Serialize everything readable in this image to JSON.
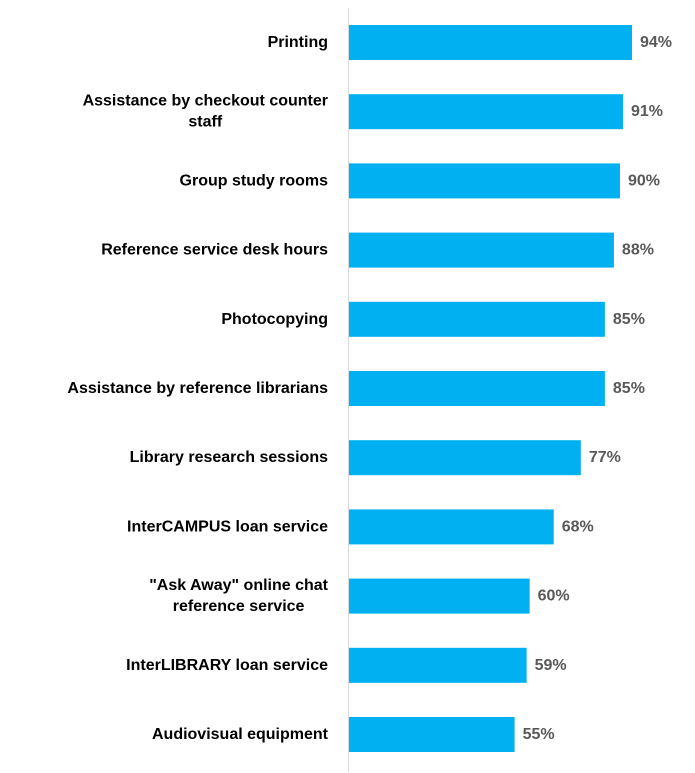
{
  "chart_data": {
    "type": "bar",
    "orientation": "horizontal",
    "categories": [
      [
        "Printing"
      ],
      [
        "Assistance by checkout counter",
        "staff"
      ],
      [
        "Group study rooms"
      ],
      [
        "Reference service desk hours"
      ],
      [
        "Photocopying"
      ],
      [
        "Assistance by reference librarians"
      ],
      [
        "Library research sessions"
      ],
      [
        "InterCAMPUS loan service"
      ],
      [
        "\"Ask Away\" online chat",
        "reference service"
      ],
      [
        "InterLIBRARY loan service"
      ],
      [
        "Audiovisual equipment"
      ]
    ],
    "values": [
      94,
      91,
      90,
      88,
      85,
      85,
      77,
      68,
      60,
      59,
      55
    ],
    "value_labels": [
      "94%",
      "91%",
      "90%",
      "88%",
      "85%",
      "85%",
      "77%",
      "68%",
      "60%",
      "59%",
      "55%"
    ],
    "title": "",
    "xlabel": "",
    "ylabel": "",
    "xlim": [
      0,
      100
    ],
    "grid": false,
    "legend": "none",
    "colors": {
      "bar": "#00B0F0",
      "axis": "#D9D9D9",
      "value_label": "#595959",
      "category_label": "#000000"
    }
  }
}
